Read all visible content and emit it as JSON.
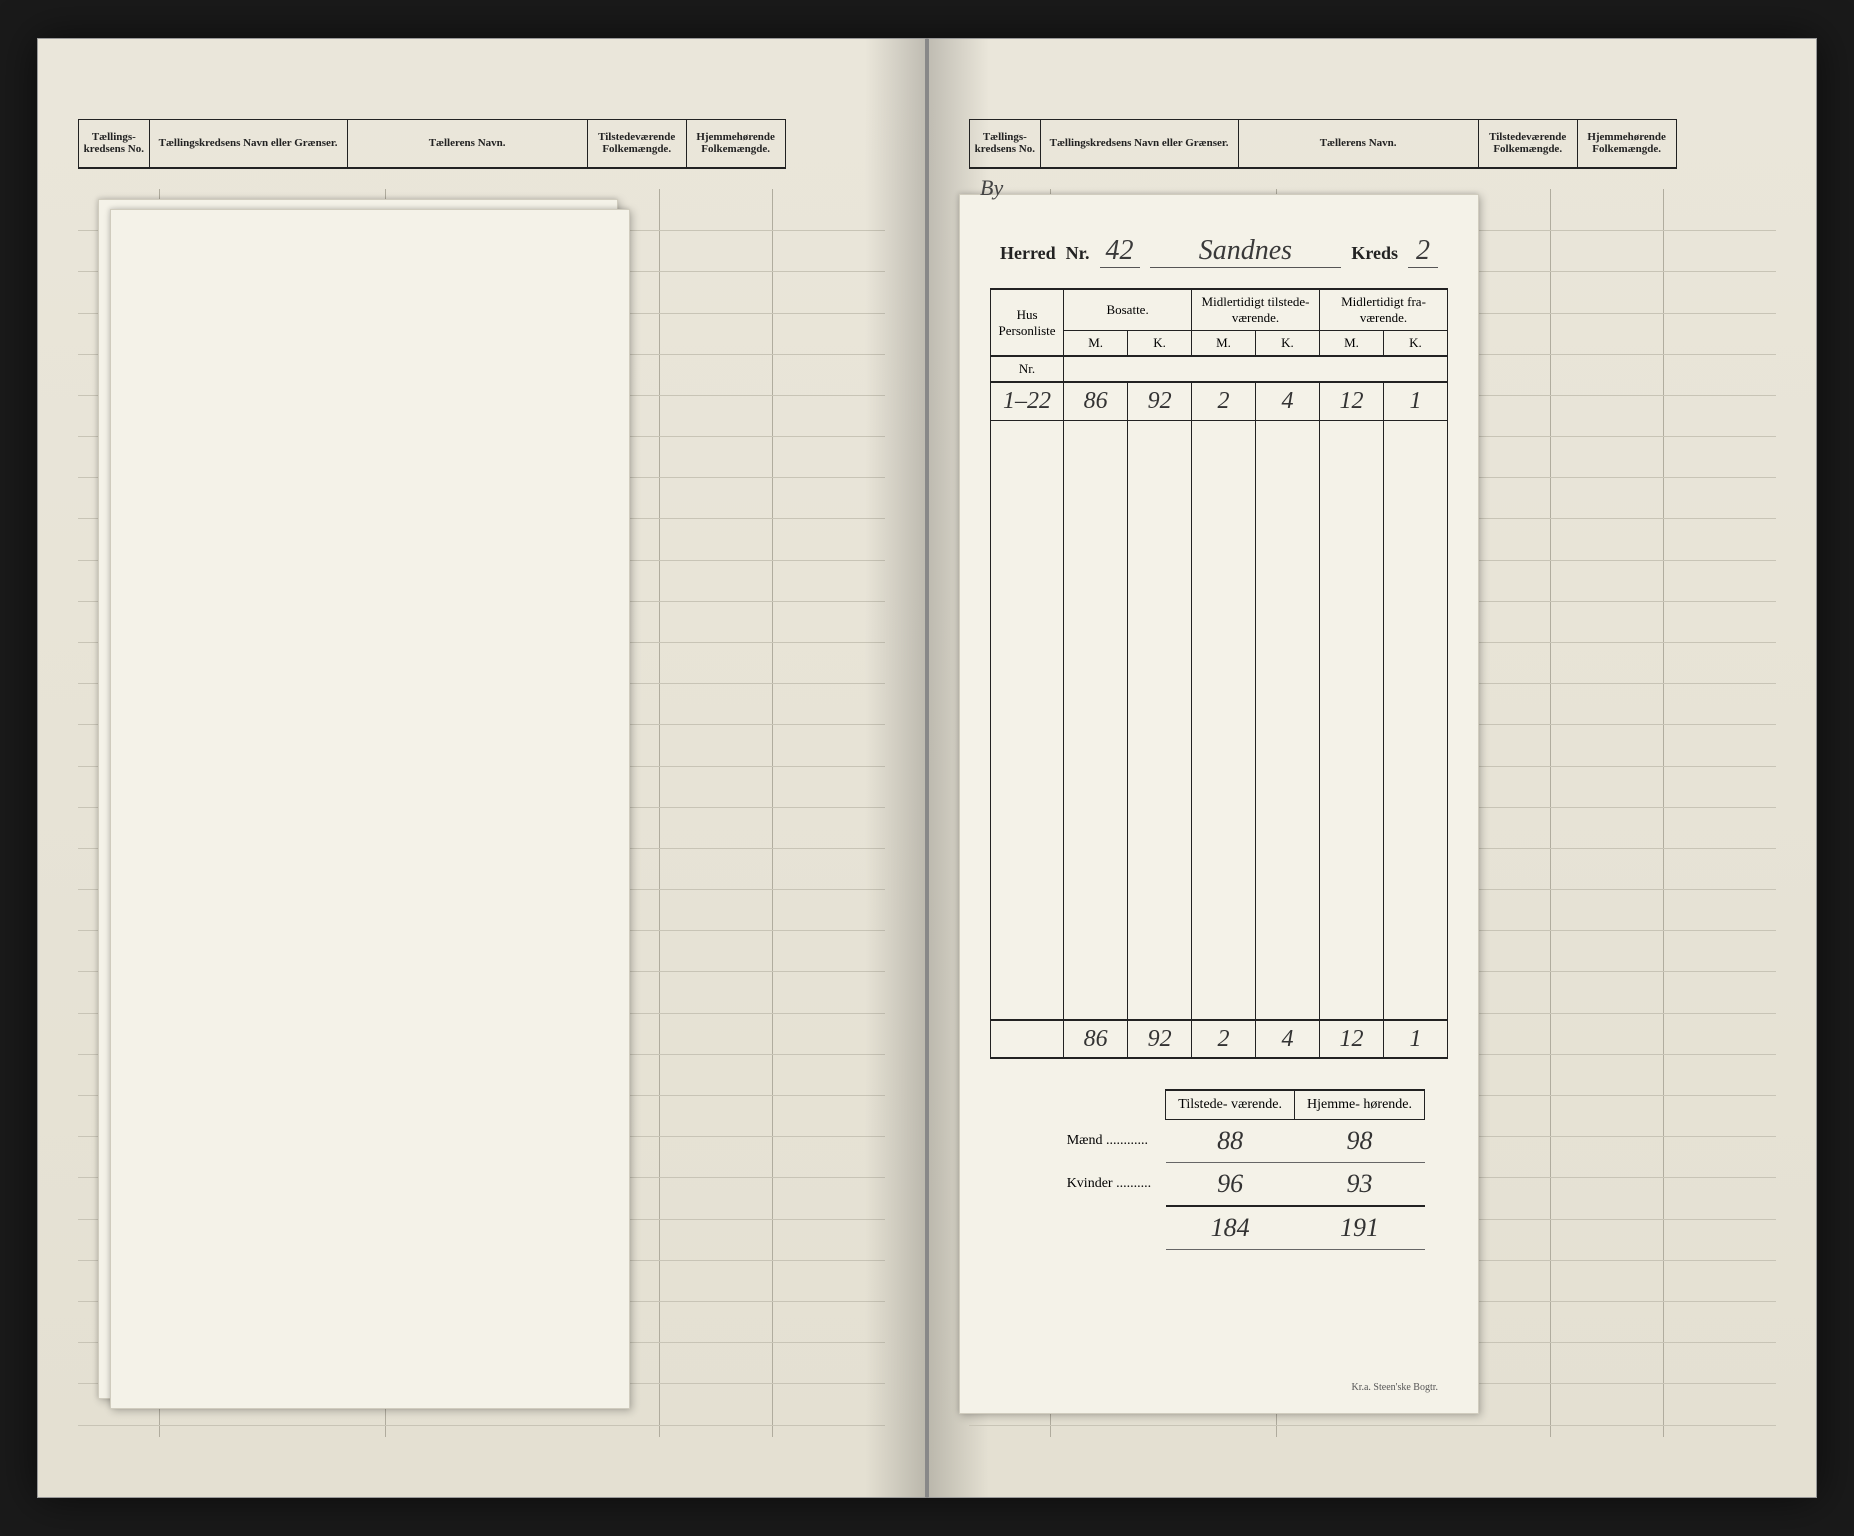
{
  "header_left": {
    "c1": "Tællings-\nkredsens No.",
    "c2": "Tællingskredsens Navn eller Grænser.",
    "c3": "Tællerens Navn.",
    "c4": "Tilstedeværende\nFolkemængde.",
    "c5": "Hjemmehørende\nFolkemængde."
  },
  "header_right": {
    "c1": "Tællings-\nkredsens No.",
    "c2": "Tællingskredsens Navn eller Grænser.",
    "c3": "Tællerens Navn.",
    "c4": "Tilstedeværende\nFolkemængde.",
    "c5": "Hjemmehørende\nFolkemængde."
  },
  "form": {
    "by_label": "By",
    "herred_label": "Herred",
    "nr_label": "Nr.",
    "nr_value": "42",
    "name_value": "Sandnes",
    "kreds_label": "Kreds",
    "kreds_value": "2",
    "table": {
      "col_hus": "Hus\nPersonliste",
      "col_bosatte": "Bosatte.",
      "col_mid_til": "Midlertidigt tilstede-\nværende.",
      "col_mid_fra": "Midlertidigt fra-\nværende.",
      "sub_nr": "Nr.",
      "sub_m": "M.",
      "sub_k": "K.",
      "row1": {
        "nr": "1–22",
        "bm": "86",
        "bk": "92",
        "tm": "2",
        "tk": "4",
        "fm": "12",
        "fk": "1"
      },
      "totals": {
        "bm": "86",
        "bk": "92",
        "tm": "2",
        "tk": "4",
        "fm": "12",
        "fk": "1"
      }
    },
    "summary": {
      "col_til": "Tilstede-\nværende.",
      "col_hjem": "Hjemme-\nhørende.",
      "maend_label": "Mænd",
      "kvinder_label": "Kvinder",
      "maend_til": "88",
      "maend_hjem": "98",
      "kvinder_til": "96",
      "kvinder_hjem": "93",
      "total_til": "184",
      "total_hjem": "191"
    },
    "printer": "Kr.a.  Steen'ske Bogtr."
  },
  "col_widths_left": [
    "10%",
    "28%",
    "34%",
    "14%",
    "14%"
  ],
  "col_widths_right": [
    "10%",
    "28%",
    "34%",
    "14%",
    "14%"
  ]
}
